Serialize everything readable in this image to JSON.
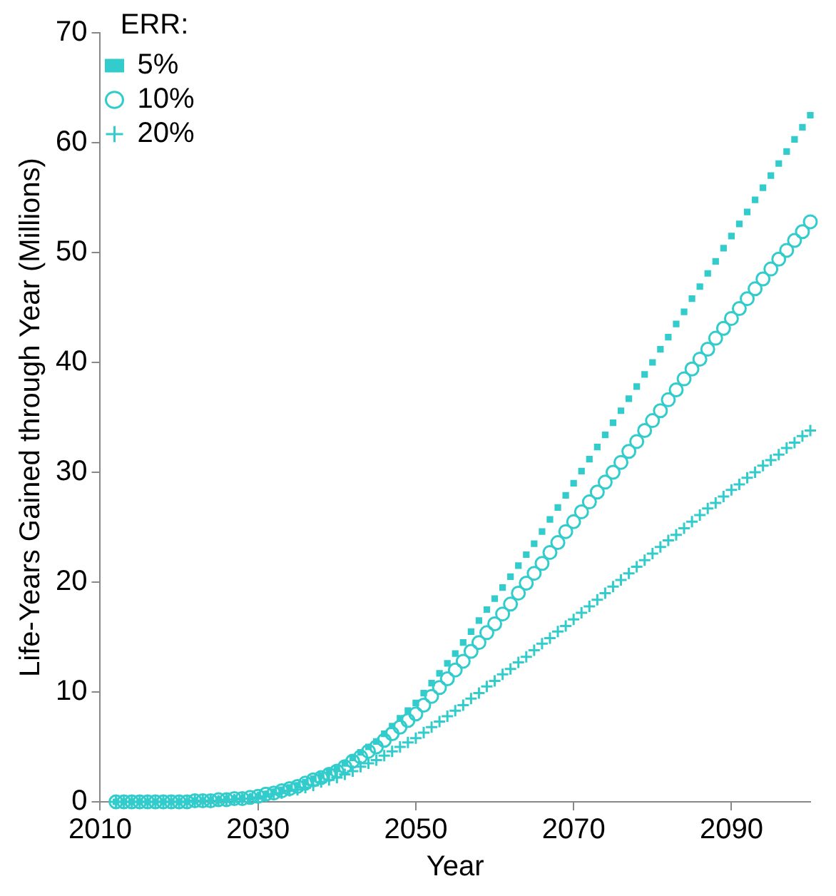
{
  "chart_data": {
    "type": "scatter",
    "xlabel": "Year",
    "ylabel": "Life-Years Gained through Year (Millions)",
    "legend_title": "ERR:",
    "legend": "top left",
    "grid": false,
    "xlim": [
      2010,
      2100
    ],
    "xticks": [
      2010,
      2030,
      2050,
      2070,
      2090
    ],
    "ylim": [
      0,
      70
    ],
    "yticks": [
      0,
      10,
      20,
      30,
      40,
      50,
      60,
      70
    ],
    "x": [
      2012,
      2013,
      2014,
      2015,
      2016,
      2017,
      2018,
      2019,
      2020,
      2021,
      2022,
      2023,
      2024,
      2025,
      2026,
      2027,
      2028,
      2029,
      2030,
      2031,
      2032,
      2033,
      2034,
      2035,
      2036,
      2037,
      2038,
      2039,
      2040,
      2041,
      2042,
      2043,
      2044,
      2045,
      2046,
      2047,
      2048,
      2049,
      2050,
      2051,
      2052,
      2053,
      2054,
      2055,
      2056,
      2057,
      2058,
      2059,
      2060,
      2061,
      2062,
      2063,
      2064,
      2065,
      2066,
      2067,
      2068,
      2069,
      2070,
      2071,
      2072,
      2073,
      2074,
      2075,
      2076,
      2077,
      2078,
      2079,
      2080,
      2081,
      2082,
      2083,
      2084,
      2085,
      2086,
      2087,
      2088,
      2089,
      2090,
      2091,
      2092,
      2093,
      2094,
      2095,
      2096,
      2097,
      2098,
      2099,
      2100
    ],
    "series": [
      {
        "name": "5%",
        "color": "#33cccc",
        "marker": "square",
        "values": [
          0,
          0,
          0,
          0,
          0,
          0,
          0,
          0,
          0,
          0,
          0.1,
          0.1,
          0.1,
          0.2,
          0.2,
          0.3,
          0.3,
          0.4,
          0.5,
          0.7,
          0.9,
          1.1,
          1.3,
          1.5,
          1.8,
          2.1,
          2.4,
          2.7,
          3,
          3.5,
          4,
          4.5,
          5,
          5.5,
          6.2,
          6.9,
          7.6,
          8.3,
          9,
          9.9,
          10.8,
          11.7,
          12.6,
          13.5,
          14.5,
          15.5,
          16.5,
          17.5,
          18.5,
          19.5,
          20.5,
          21.5,
          22.5,
          23.5,
          24.6,
          25.7,
          26.8,
          27.9,
          29,
          30.1,
          31.2,
          32.3,
          33.4,
          34.5,
          35.6,
          36.7,
          37.8,
          38.9,
          40,
          41.2,
          42.3,
          43.5,
          44.6,
          45.8,
          46.9,
          48.1,
          49.2,
          50.4,
          51.5,
          52.6,
          53.7,
          54.8,
          55.9,
          57,
          58.1,
          59.2,
          60.3,
          61.4,
          62.5
        ]
      },
      {
        "name": "10%",
        "color": "#33cccc",
        "marker": "circle",
        "values": [
          0,
          0,
          0,
          0,
          0,
          0,
          0,
          0,
          0,
          0,
          0.1,
          0.1,
          0.1,
          0.2,
          0.2,
          0.3,
          0.3,
          0.4,
          0.5,
          0.7,
          0.8,
          1,
          1.2,
          1.4,
          1.7,
          2,
          2.2,
          2.5,
          2.8,
          3.2,
          3.7,
          4.1,
          4.6,
          5,
          5.6,
          6.2,
          6.8,
          7.4,
          8,
          8.8,
          9.6,
          10.4,
          11.2,
          12,
          12.8,
          13.7,
          14.5,
          15.4,
          16.2,
          17.1,
          18,
          19,
          19.9,
          20.8,
          21.7,
          22.7,
          23.6,
          24.6,
          25.5,
          26.4,
          27.3,
          28.2,
          29.1,
          30,
          30.9,
          31.9,
          32.8,
          33.8,
          34.7,
          35.6,
          36.6,
          37.5,
          38.5,
          39.4,
          40.3,
          41.2,
          42.2,
          43.1,
          44,
          44.9,
          45.8,
          46.7,
          47.6,
          48.5,
          49.4,
          50.2,
          51.1,
          51.9,
          52.8
        ]
      },
      {
        "name": "20%",
        "color": "#33cccc",
        "marker": "cross",
        "values": [
          0,
          0,
          0,
          0,
          0,
          0,
          0,
          0,
          0,
          0,
          0.1,
          0.1,
          0.1,
          0.1,
          0.2,
          0.2,
          0.3,
          0.3,
          0.4,
          0.5,
          0.7,
          0.8,
          1,
          1.1,
          1.3,
          1.5,
          1.8,
          2,
          2.2,
          2.5,
          2.8,
          3.2,
          3.5,
          3.8,
          4.2,
          4.6,
          5,
          5.4,
          5.8,
          6.3,
          6.8,
          7.3,
          7.8,
          8.3,
          8.8,
          9.4,
          9.9,
          10.5,
          11,
          11.6,
          12.1,
          12.7,
          13.2,
          13.8,
          14.4,
          14.9,
          15.5,
          16,
          16.6,
          17.2,
          17.8,
          18.4,
          19,
          19.6,
          20.2,
          20.8,
          21.4,
          22,
          22.6,
          23.2,
          23.8,
          24.3,
          24.9,
          25.5,
          26.1,
          26.7,
          27.2,
          27.8,
          28.4,
          28.9,
          29.5,
          30,
          30.6,
          31.1,
          31.6,
          32.2,
          32.7,
          33.3,
          33.8
        ]
      }
    ]
  }
}
